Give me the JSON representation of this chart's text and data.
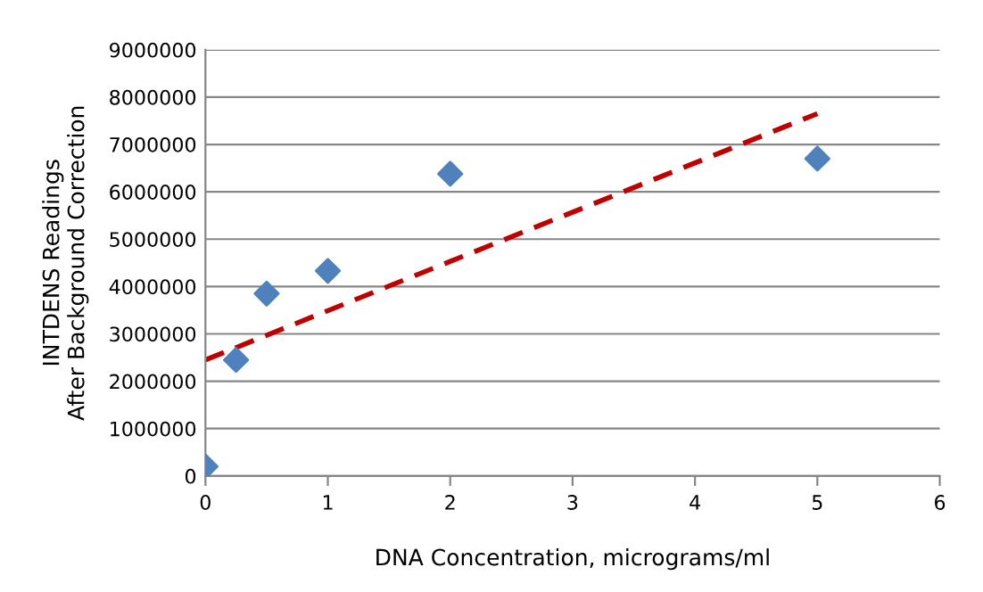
{
  "chart_data": {
    "type": "scatter",
    "xlabel": "DNA Concentration, micrograms/ml",
    "ylabel": "INTDENS Readings\nAfter Background Correction",
    "series": [
      {
        "color": "#4f81bd",
        "marker": "diamond",
        "x": [
          0,
          0.25,
          0.5,
          1,
          2,
          5
        ],
        "values": [
          200000,
          2450000,
          3850000,
          4330000,
          6380000,
          6700000
        ]
      },
      {
        "type": "line",
        "color": "#c00000",
        "line_style": "dashed",
        "marker": "none",
        "x": [
          0,
          5
        ],
        "values": [
          2450000,
          7650000
        ]
      }
    ],
    "xlim": [
      0,
      6
    ],
    "xticks": [
      0,
      1,
      2,
      3,
      4,
      5,
      6
    ],
    "ylim": [
      0,
      9000000
    ],
    "yticks": [
      0,
      1000000,
      2000000,
      3000000,
      4000000,
      5000000,
      6000000,
      7000000,
      8000000,
      9000000
    ],
    "grid": "y"
  }
}
